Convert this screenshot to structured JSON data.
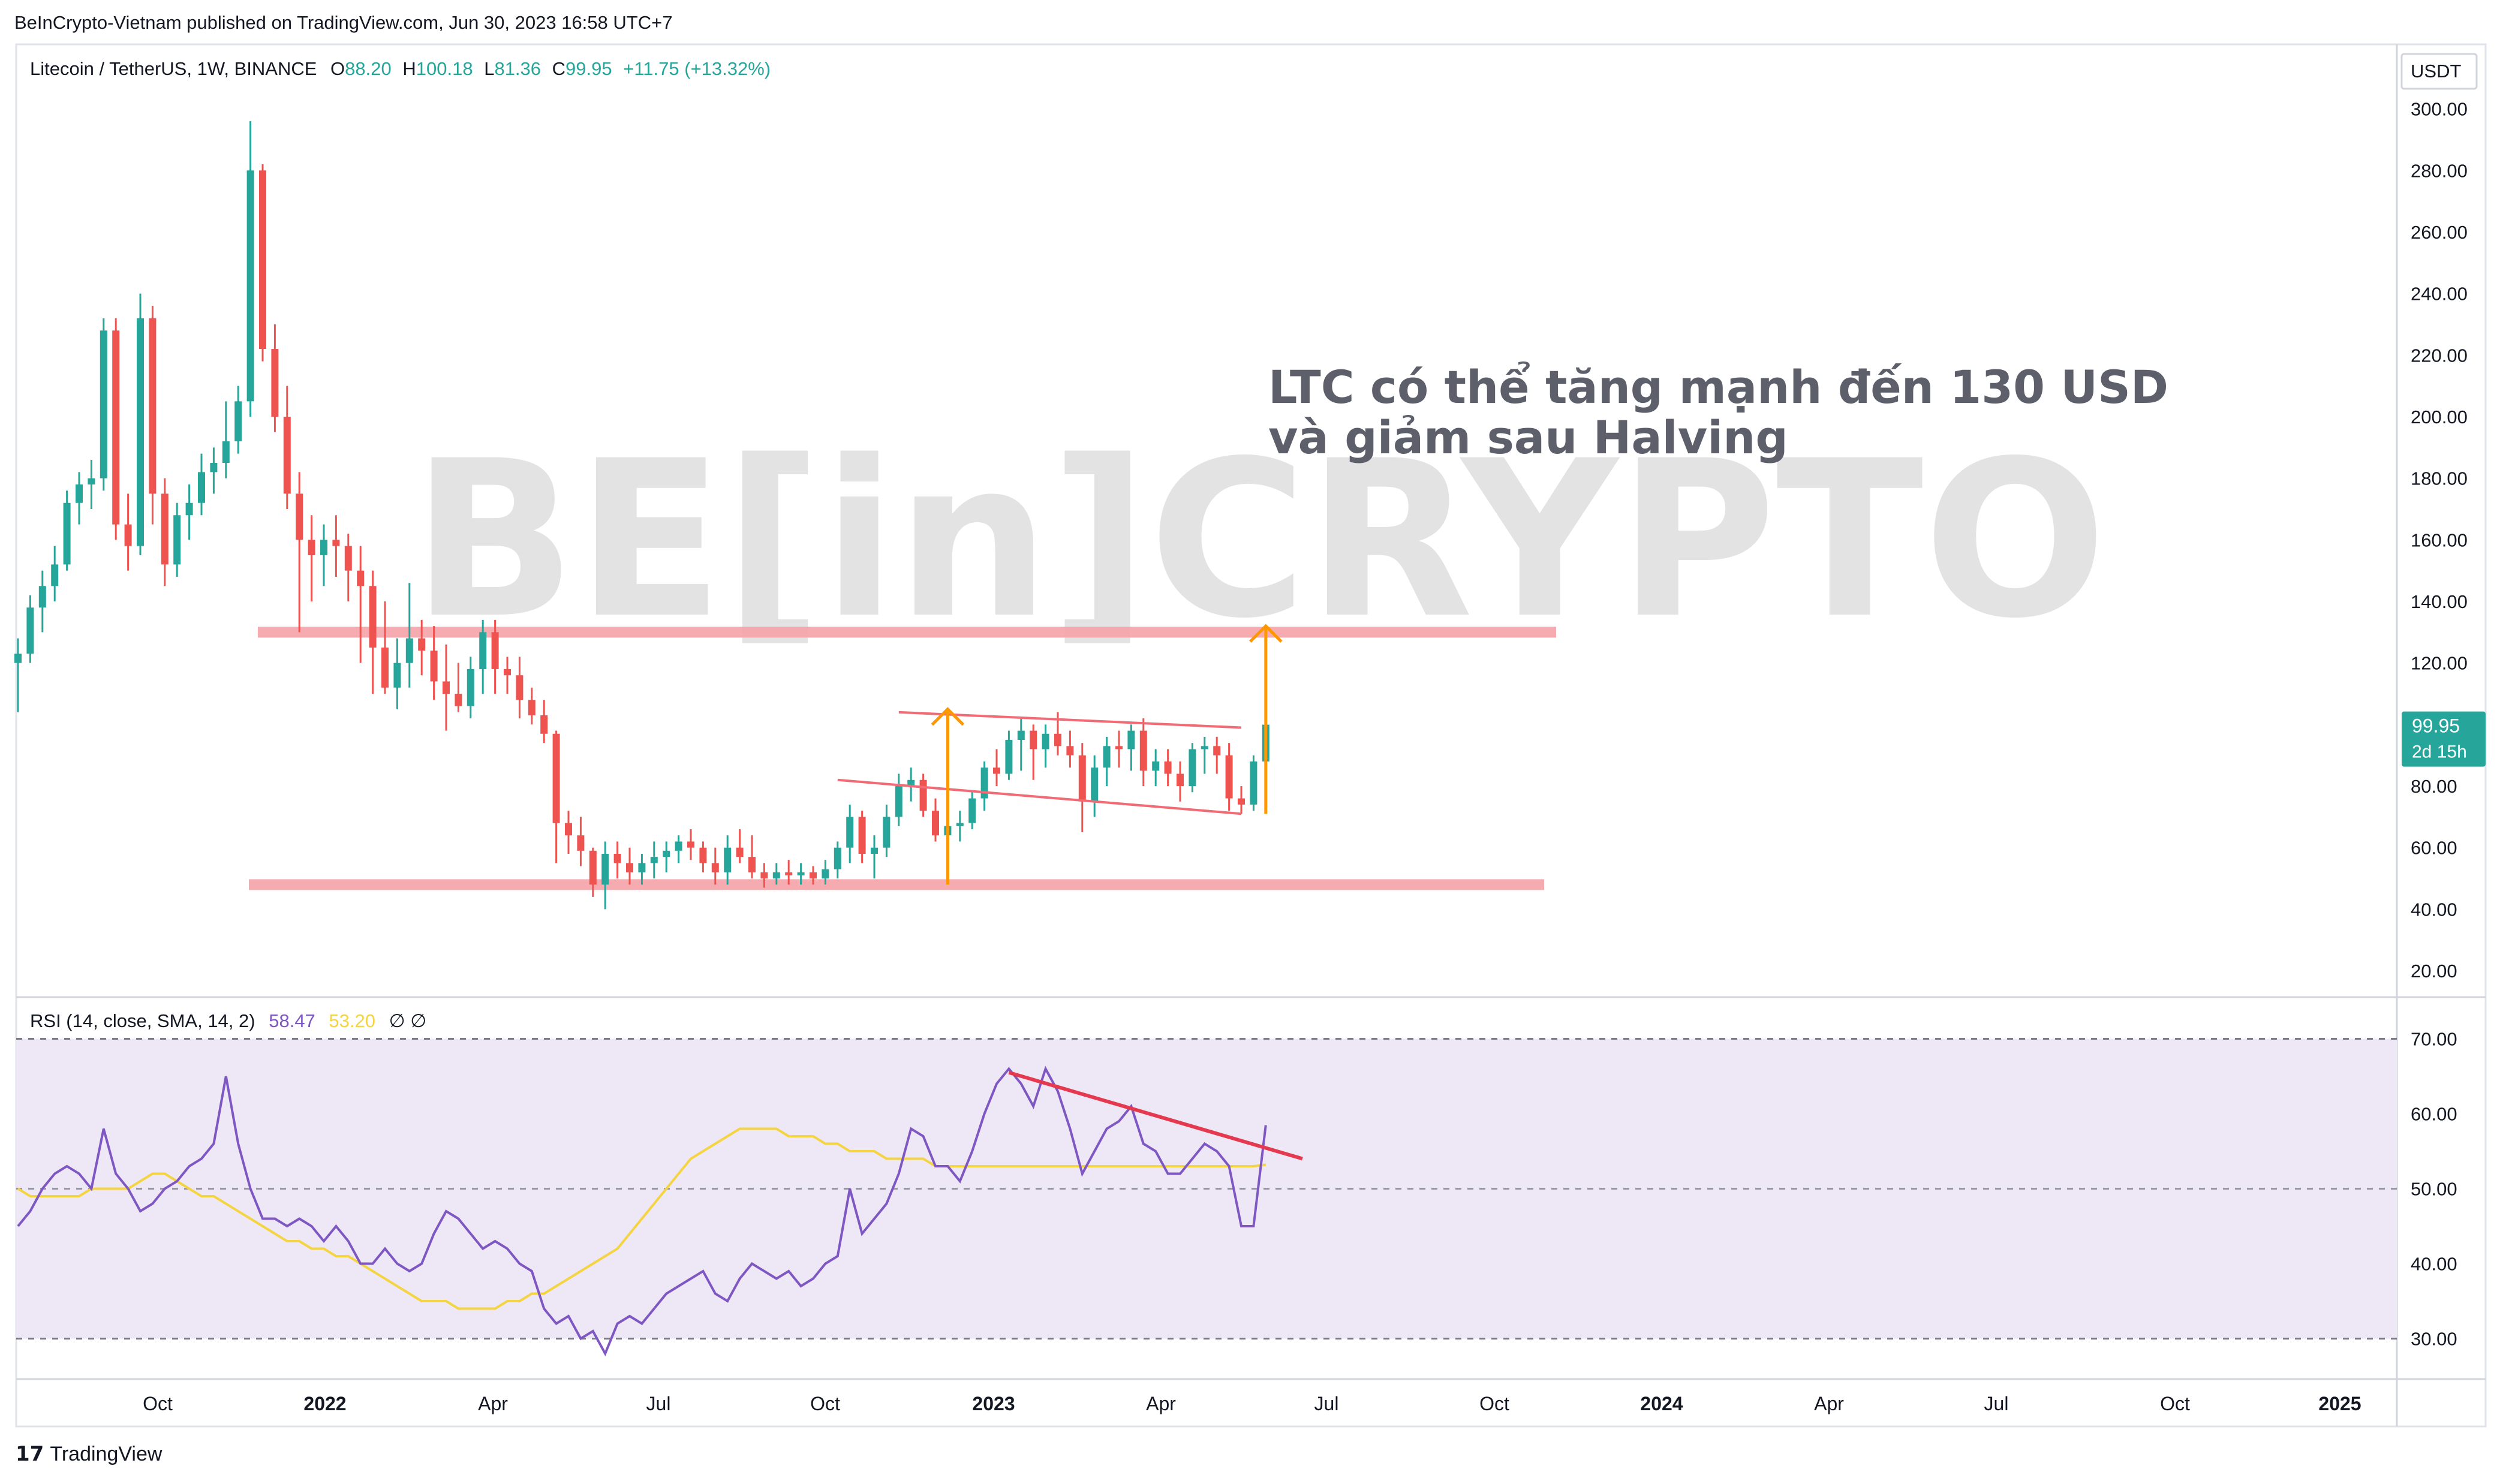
{
  "publish_line": "BeInCrypto-Vietnam published on TradingView.com, Jun 30, 2023 16:58 UTC+7",
  "header": {
    "symbol": "Litecoin / TetherUS, 1W, BINANCE",
    "o_label": "O",
    "o": "88.20",
    "h_label": "H",
    "h": "100.18",
    "l_label": "L",
    "l": "81.36",
    "c_label": "C",
    "c": "99.95",
    "change": "+11.75 (+13.32%)"
  },
  "currency": "USDT",
  "last_price": {
    "value": "99.95",
    "countdown": "2d 15h"
  },
  "annotation": {
    "line1": "LTC có thể tăng mạnh đến 130 USD",
    "line2": "và giảm sau Halving"
  },
  "watermark": "BE[in]CRYPTO",
  "rsi_legend": {
    "label": "RSI (14, close, SMA, 14, 2)",
    "rsi": "58.47",
    "sma": "53.20",
    "extra": "∅ ∅"
  },
  "footer": {
    "brand": "TradingView",
    "mark": "17"
  },
  "colors": {
    "up": "#26a69a",
    "down": "#ef5350",
    "support": "#f5a3a8",
    "arrow": "#ff9800",
    "rsi": "#7e57c2",
    "rsi_sma": "#f5d442",
    "rsi_bg": "#ede7f6",
    "price_tag": "#26a69a"
  },
  "chart_data": [
    {
      "type": "candlestick",
      "title": "Litecoin / TetherUS, 1W, BINANCE",
      "yaxis": {
        "ticks": [
          300,
          280,
          260,
          240,
          220,
          200,
          180,
          160,
          140,
          120,
          100,
          80,
          60,
          40,
          20
        ],
        "tick_labels": [
          "300.00",
          "280.00",
          "260.00",
          "240.00",
          "220.00",
          "200.00",
          "180.00",
          "160.00",
          "140.00",
          "120.00",
          "100.00",
          "80.00",
          "60.00",
          "40.00",
          "20.00"
        ],
        "range": [
          13,
          312
        ]
      },
      "xaxis": {
        "labels": [
          "Oct",
          "2022",
          "Apr",
          "Jul",
          "Oct",
          "2023",
          "Apr",
          "Jul",
          "Oct",
          "2024",
          "Apr",
          "Jul",
          "Oct",
          "2025"
        ],
        "label_dates": [
          "2021-10-01",
          "2022-01-01",
          "2022-04-01",
          "2022-07-01",
          "2022-10-01",
          "2023-01-01",
          "2023-04-01",
          "2023-07-01",
          "2023-10-01",
          "2024-01-01",
          "2024-04-01",
          "2024-07-01",
          "2024-10-01",
          "2025-01-01"
        ]
      },
      "candles": [
        [
          120,
          128,
          104,
          123
        ],
        [
          123,
          142,
          120,
          138
        ],
        [
          138,
          150,
          130,
          145
        ],
        [
          145,
          158,
          140,
          152
        ],
        [
          152,
          176,
          150,
          172
        ],
        [
          172,
          182,
          165,
          178
        ],
        [
          178,
          186,
          170,
          180
        ],
        [
          180,
          232,
          176,
          228
        ],
        [
          228,
          232,
          160,
          165
        ],
        [
          165,
          175,
          150,
          158
        ],
        [
          158,
          240,
          155,
          232
        ],
        [
          232,
          236,
          165,
          175
        ],
        [
          175,
          180,
          145,
          152
        ],
        [
          152,
          172,
          148,
          168
        ],
        [
          168,
          178,
          160,
          172
        ],
        [
          172,
          188,
          168,
          182
        ],
        [
          182,
          190,
          175,
          185
        ],
        [
          185,
          205,
          180,
          192
        ],
        [
          192,
          210,
          188,
          205
        ],
        [
          205,
          296,
          200,
          280
        ],
        [
          280,
          282,
          218,
          222
        ],
        [
          222,
          230,
          195,
          200
        ],
        [
          200,
          210,
          170,
          175
        ],
        [
          175,
          182,
          130,
          160
        ],
        [
          160,
          168,
          140,
          155
        ],
        [
          155,
          165,
          145,
          160
        ],
        [
          160,
          168,
          148,
          158
        ],
        [
          158,
          162,
          140,
          150
        ],
        [
          150,
          158,
          120,
          145
        ],
        [
          145,
          150,
          110,
          125
        ],
        [
          125,
          140,
          110,
          112
        ],
        [
          112,
          128,
          105,
          120
        ],
        [
          120,
          146,
          112,
          128
        ],
        [
          128,
          134,
          116,
          124
        ],
        [
          124,
          132,
          108,
          114
        ],
        [
          114,
          126,
          98,
          110
        ],
        [
          110,
          120,
          104,
          106
        ],
        [
          106,
          122,
          102,
          118
        ],
        [
          118,
          134,
          110,
          130
        ],
        [
          130,
          134,
          110,
          118
        ],
        [
          118,
          122,
          110,
          116
        ],
        [
          116,
          122,
          102,
          108
        ],
        [
          108,
          112,
          100,
          103
        ],
        [
          103,
          108,
          94,
          97
        ],
        [
          97,
          98,
          55,
          68
        ],
        [
          68,
          72,
          58,
          64
        ],
        [
          64,
          70,
          54,
          59
        ],
        [
          59,
          60,
          44,
          48
        ],
        [
          48,
          62,
          40,
          58
        ],
        [
          58,
          62,
          50,
          55
        ],
        [
          55,
          60,
          48,
          52
        ],
        [
          52,
          58,
          48,
          55
        ],
        [
          55,
          62,
          50,
          57
        ],
        [
          57,
          62,
          52,
          59
        ],
        [
          59,
          64,
          55,
          62
        ],
        [
          62,
          66,
          56,
          60
        ],
        [
          60,
          62,
          52,
          55
        ],
        [
          55,
          60,
          48,
          52
        ],
        [
          52,
          64,
          48,
          60
        ],
        [
          60,
          66,
          55,
          57
        ],
        [
          57,
          64,
          50,
          52
        ],
        [
          52,
          55,
          47,
          50
        ],
        [
          50,
          55,
          48,
          52
        ],
        [
          52,
          56,
          48,
          51
        ],
        [
          51,
          55,
          48,
          52
        ],
        [
          52,
          54,
          48,
          50
        ],
        [
          50,
          56,
          48,
          53
        ],
        [
          53,
          62,
          50,
          60
        ],
        [
          60,
          74,
          55,
          70
        ],
        [
          70,
          72,
          55,
          58
        ],
        [
          58,
          64,
          50,
          60
        ],
        [
          60,
          74,
          57,
          70
        ],
        [
          70,
          84,
          67,
          80
        ],
        [
          80,
          86,
          75,
          82
        ],
        [
          82,
          84,
          70,
          72
        ],
        [
          72,
          76,
          62,
          64
        ],
        [
          64,
          70,
          60,
          67
        ],
        [
          67,
          72,
          62,
          68
        ],
        [
          68,
          78,
          66,
          76
        ],
        [
          76,
          88,
          72,
          86
        ],
        [
          86,
          92,
          80,
          84
        ],
        [
          84,
          98,
          82,
          95
        ],
        [
          95,
          102,
          85,
          98
        ],
        [
          98,
          100,
          82,
          92
        ],
        [
          92,
          100,
          86,
          97
        ],
        [
          97,
          104,
          90,
          93
        ],
        [
          93,
          98,
          86,
          90
        ],
        [
          90,
          94,
          65,
          75
        ],
        [
          75,
          90,
          70,
          86
        ],
        [
          86,
          96,
          80,
          93
        ],
        [
          93,
          98,
          86,
          92
        ],
        [
          92,
          100,
          85,
          98
        ],
        [
          98,
          102,
          80,
          85
        ],
        [
          85,
          92,
          80,
          88
        ],
        [
          88,
          92,
          80,
          84
        ],
        [
          84,
          88,
          75,
          80
        ],
        [
          80,
          94,
          78,
          92
        ],
        [
          92,
          96,
          84,
          93
        ],
        [
          93,
          96,
          84,
          90
        ],
        [
          90,
          94,
          72,
          76
        ],
        [
          76,
          80,
          71,
          74
        ],
        [
          74,
          90,
          72,
          88
        ],
        [
          88,
          100,
          81,
          99.95
        ]
      ],
      "horizontal_levels": [
        {
          "value": 130
        },
        {
          "value": 48
        }
      ],
      "channel": {
        "upper": [
          [
            72,
            104
          ],
          [
            100,
            99
          ]
        ],
        "lower": [
          [
            67,
            82
          ],
          [
            100,
            71
          ]
        ]
      },
      "arrows": [
        {
          "x": 76,
          "from": 48,
          "to": 105
        },
        {
          "x": 102,
          "from": 71,
          "to": 132
        }
      ]
    },
    {
      "type": "line",
      "title": "RSI (14, close, SMA, 14, 2)",
      "yaxis": {
        "ticks": [
          70,
          60,
          50,
          40,
          30
        ],
        "tick_labels": [
          "70.00",
          "60.00",
          "50.00",
          "40.00",
          "30.00"
        ],
        "range": [
          25,
          75
        ]
      },
      "band": [
        30,
        70
      ],
      "midline": 50,
      "series": [
        {
          "name": "RSI",
          "values": [
            45,
            47,
            50,
            52,
            53,
            52,
            50,
            58,
            52,
            50,
            47,
            48,
            50,
            51,
            53,
            54,
            56,
            65,
            56,
            50,
            46,
            46,
            45,
            46,
            45,
            43,
            45,
            43,
            40,
            40,
            42,
            40,
            39,
            40,
            44,
            47,
            46,
            44,
            42,
            43,
            42,
            40,
            39,
            34,
            32,
            33,
            30,
            31,
            28,
            32,
            33,
            32,
            34,
            36,
            37,
            38,
            39,
            36,
            35,
            38,
            40,
            39,
            38,
            39,
            37,
            38,
            40,
            41,
            50,
            44,
            46,
            48,
            52,
            58,
            57,
            53,
            53,
            51,
            55,
            60,
            64,
            66,
            64,
            61,
            66,
            63,
            58,
            52,
            55,
            58,
            59,
            61,
            56,
            55,
            52,
            52,
            54,
            56,
            55,
            53,
            45,
            45,
            58.47
          ]
        },
        {
          "name": "SMA",
          "values": [
            50,
            49,
            49,
            49,
            49,
            49,
            50,
            50,
            50,
            50,
            51,
            52,
            52,
            51,
            50,
            49,
            49,
            48,
            47,
            46,
            45,
            44,
            43,
            43,
            42,
            42,
            41,
            41,
            40,
            39,
            38,
            37,
            36,
            35,
            35,
            35,
            34,
            34,
            34,
            34,
            35,
            35,
            36,
            36,
            37,
            38,
            39,
            40,
            41,
            42,
            44,
            46,
            48,
            50,
            52,
            54,
            55,
            56,
            57,
            58,
            58,
            58,
            58,
            57,
            57,
            57,
            56,
            56,
            55,
            55,
            55,
            54,
            54,
            54,
            54,
            53,
            53,
            53,
            53,
            53,
            53,
            53,
            53,
            53,
            53,
            53,
            53,
            53,
            53,
            53,
            53,
            53,
            53,
            53,
            53,
            53,
            53,
            53,
            53,
            53,
            53,
            53,
            53.2
          ]
        }
      ],
      "trendline": [
        [
          81,
          65.5
        ],
        [
          105,
          54
        ]
      ]
    }
  ]
}
